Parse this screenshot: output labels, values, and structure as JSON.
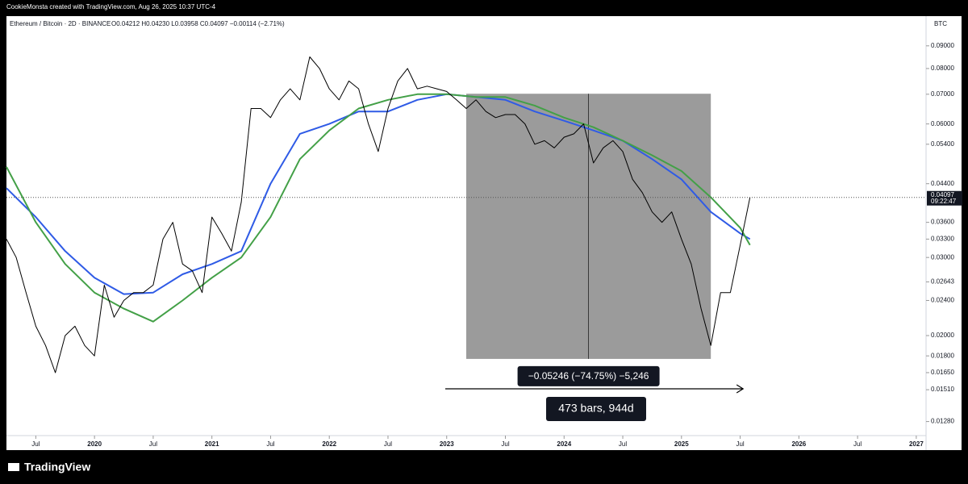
{
  "header": {
    "credit": "CookieMonsta created with TradingView.com, Aug 26, 2025 10:37 UTC-4"
  },
  "footer": {
    "brand": "TradingView"
  },
  "chart_data": {
    "type": "line",
    "title": "Ethereum / Bitcoin · 2D · BINANCE",
    "ohlc_text": "O0.04212 H0.04230 L0.03958 C0.04097 −0.00114 (−2.71%)",
    "y_unit": "BTC",
    "log_scale": true,
    "x": [
      "2019-04",
      "2019-05",
      "2019-06",
      "2019-07",
      "2019-08",
      "2019-09",
      "2019-10",
      "2019-11",
      "2019-12",
      "2020-01",
      "2020-02",
      "2020-03",
      "2020-04",
      "2020-05",
      "2020-06",
      "2020-07",
      "2020-08",
      "2020-09",
      "2020-10",
      "2020-11",
      "2020-12",
      "2021-01",
      "2021-02",
      "2021-03",
      "2021-04",
      "2021-05",
      "2021-06",
      "2021-07",
      "2021-08",
      "2021-09",
      "2021-10",
      "2021-11",
      "2021-12",
      "2022-01",
      "2022-02",
      "2022-03",
      "2022-04",
      "2022-05",
      "2022-06",
      "2022-07",
      "2022-08",
      "2022-09",
      "2022-10",
      "2022-11",
      "2022-12",
      "2023-01",
      "2023-02",
      "2023-03",
      "2023-04",
      "2023-05",
      "2023-06",
      "2023-07",
      "2023-08",
      "2023-09",
      "2023-10",
      "2023-11",
      "2023-12",
      "2024-01",
      "2024-02",
      "2024-03",
      "2024-04",
      "2024-05",
      "2024-06",
      "2024-07",
      "2024-08",
      "2024-09",
      "2024-10",
      "2024-11",
      "2024-12",
      "2025-01",
      "2025-02",
      "2025-03",
      "2025-04",
      "2025-05",
      "2025-06",
      "2025-07",
      "2025-08"
    ],
    "series": [
      {
        "color": "#000000",
        "values": [
          0.033,
          0.03,
          0.025,
          0.021,
          0.019,
          0.0165,
          0.02,
          0.021,
          0.019,
          0.018,
          0.026,
          0.022,
          0.024,
          0.025,
          0.025,
          0.026,
          0.033,
          0.036,
          0.029,
          0.028,
          0.025,
          0.037,
          0.034,
          0.031,
          0.04,
          0.065,
          0.065,
          0.062,
          0.068,
          0.072,
          0.068,
          0.085,
          0.08,
          0.072,
          0.068,
          0.075,
          0.072,
          0.06,
          0.052,
          0.065,
          0.075,
          0.08,
          0.072,
          0.073,
          0.072,
          0.071,
          0.068,
          0.065,
          0.068,
          0.064,
          0.062,
          0.063,
          0.063,
          0.06,
          0.054,
          0.055,
          0.053,
          0.056,
          0.057,
          0.06,
          0.049,
          0.053,
          0.055,
          0.052,
          0.045,
          0.042,
          0.038,
          0.036,
          0.038,
          0.033,
          0.029,
          0.023,
          0.019,
          0.025,
          0.025,
          0.032,
          0.04097
        ]
      }
    ],
    "ma_x": [
      "2019-04",
      "2019-07",
      "2019-10",
      "2020-01",
      "2020-04",
      "2020-07",
      "2020-10",
      "2021-01",
      "2021-04",
      "2021-07",
      "2021-10",
      "2022-01",
      "2022-04",
      "2022-07",
      "2022-10",
      "2023-01",
      "2023-04",
      "2023-07",
      "2023-10",
      "2024-01",
      "2024-04",
      "2024-07",
      "2024-10",
      "2025-01",
      "2025-04",
      "2025-07",
      "2025-08"
    ],
    "ma_series": [
      {
        "color": "#2f5be6",
        "values": [
          0.043,
          0.037,
          0.031,
          0.027,
          0.0248,
          0.025,
          0.0275,
          0.029,
          0.031,
          0.044,
          0.057,
          0.06,
          0.064,
          0.064,
          0.068,
          0.07,
          0.069,
          0.068,
          0.064,
          0.061,
          0.058,
          0.055,
          0.05,
          0.045,
          0.038,
          0.034,
          0.033
        ]
      },
      {
        "color": "#43a047",
        "values": [
          0.048,
          0.036,
          0.029,
          0.025,
          0.023,
          0.0215,
          0.024,
          0.027,
          0.03,
          0.037,
          0.05,
          0.058,
          0.065,
          0.068,
          0.07,
          0.07,
          0.069,
          0.069,
          0.066,
          0.062,
          0.059,
          0.055,
          0.051,
          0.047,
          0.041,
          0.035,
          0.032
        ]
      }
    ],
    "xlim": [
      "2019-04",
      "2027-02"
    ],
    "xticks": [
      {
        "value": "2019-07",
        "label": "Jul"
      },
      {
        "value": "2020-01",
        "label": "2020"
      },
      {
        "value": "2020-07",
        "label": "Jul"
      },
      {
        "value": "2021-01",
        "label": "2021"
      },
      {
        "value": "2021-07",
        "label": "Jul"
      },
      {
        "value": "2022-01",
        "label": "2022"
      },
      {
        "value": "2022-07",
        "label": "Jul"
      },
      {
        "value": "2023-01",
        "label": "2023"
      },
      {
        "value": "2023-07",
        "label": "Jul"
      },
      {
        "value": "2024-01",
        "label": "2024"
      },
      {
        "value": "2024-07",
        "label": "Jul"
      },
      {
        "value": "2025-01",
        "label": "2025"
      },
      {
        "value": "2025-07",
        "label": "Jul"
      },
      {
        "value": "2026-01",
        "label": "2026"
      },
      {
        "value": "2026-07",
        "label": "Jul"
      },
      {
        "value": "2027-01",
        "label": "2027"
      }
    ],
    "ylim": [
      0.0119,
      0.105
    ],
    "yticks": [
      {
        "value": 0.09,
        "label": "0.09000"
      },
      {
        "value": 0.08,
        "label": "0.08000"
      },
      {
        "value": 0.07,
        "label": "0.07000"
      },
      {
        "value": 0.06,
        "label": "0.06000"
      },
      {
        "value": 0.054,
        "label": "0.05400"
      },
      {
        "value": 0.044,
        "label": "0.04400"
      },
      {
        "value": 0.036,
        "label": "0.03600"
      },
      {
        "value": 0.033,
        "label": "0.03300"
      },
      {
        "value": 0.03,
        "label": "0.03000"
      },
      {
        "value": 0.02643,
        "label": "0.02643"
      },
      {
        "value": 0.024,
        "label": "0.02400"
      },
      {
        "value": 0.02,
        "label": "0.02000"
      },
      {
        "value": 0.018,
        "label": "0.01800"
      },
      {
        "value": 0.0165,
        "label": "0.01650"
      },
      {
        "value": 0.0151,
        "label": "0.01510"
      },
      {
        "value": 0.0128,
        "label": "0.01280"
      }
    ],
    "last_price": {
      "value": 0.04097,
      "label": "0.04097"
    },
    "countdown": "09:22:47",
    "measure": {
      "x": [
        "2023-03",
        "2025-04"
      ],
      "y": [
        0.07018,
        0.01772
      ],
      "price_change_label": "−0.05246 (−74.75%) −5,246",
      "range_label": "473 bars, 944d"
    }
  }
}
